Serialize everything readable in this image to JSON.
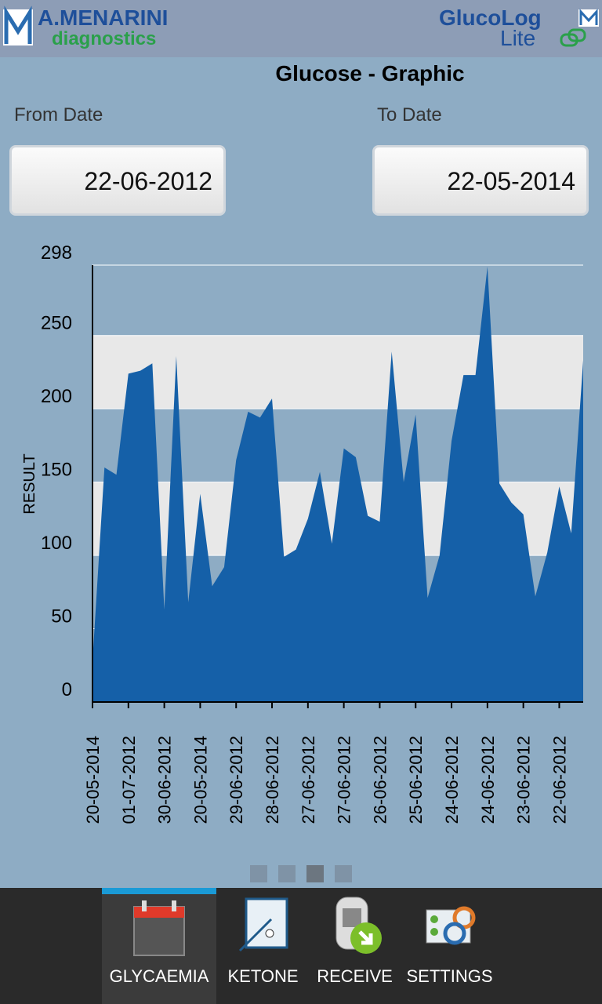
{
  "header": {
    "brand": "A.MENARINI",
    "brand_sub": "diagnostics",
    "app": "GlucoLog",
    "app_sub": "Lite"
  },
  "title": "Glucose - Graphic",
  "from_date": {
    "label": "From Date",
    "value": "22-06-2012"
  },
  "to_date": {
    "label": "To Date",
    "value": "22-05-2014"
  },
  "chart_data": {
    "type": "area",
    "y_label": "RESULT",
    "color": "#1560a8",
    "categories": [
      "20-05-2014",
      null,
      null,
      "01-07-2012",
      null,
      null,
      "30-06-2012",
      null,
      null,
      "20-05-2014",
      null,
      null,
      "29-06-2012",
      null,
      null,
      "28-06-2012",
      null,
      null,
      "27-06-2012",
      null,
      null,
      "27-06-2012",
      null,
      null,
      "26-06-2012",
      null,
      null,
      "25-06-2012",
      null,
      null,
      "24-06-2012",
      null,
      null,
      "24-06-2012",
      null,
      null,
      "23-06-2012",
      null,
      null,
      "22-06-2012",
      null,
      null
    ],
    "values": [
      28,
      160,
      155,
      224,
      226,
      231,
      63,
      236,
      68,
      142,
      79,
      92,
      165,
      198,
      194,
      207,
      99,
      104,
      125,
      157,
      108,
      173,
      167,
      127,
      123,
      239,
      150,
      196,
      71,
      100,
      178,
      223,
      223,
      297,
      149,
      136,
      128,
      72,
      102,
      147,
      115,
      233
    ],
    "ylim": [
      0,
      298
    ],
    "yticks": [
      0,
      50,
      100,
      150,
      200,
      250,
      298
    ]
  },
  "tabs": [
    "GLYCAEMIA",
    "KETONE",
    "RECEIVE",
    "SETTINGS"
  ]
}
